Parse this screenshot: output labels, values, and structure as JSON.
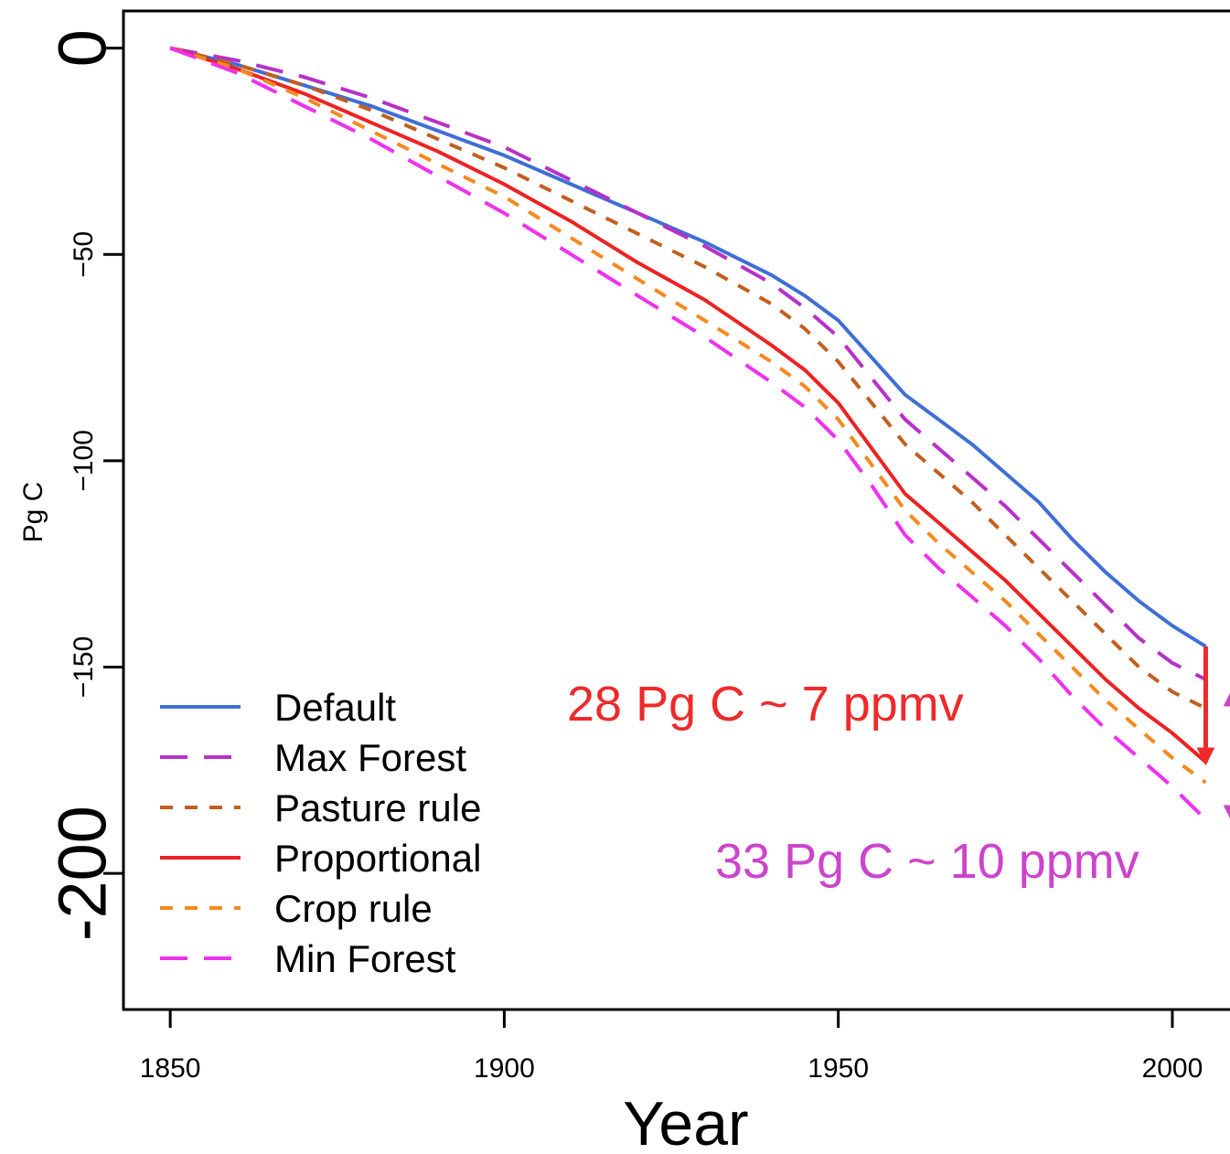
{
  "chart_data": {
    "type": "line",
    "xlabel": "Year",
    "ylabel": "Pg C",
    "xlim": [
      1843,
      2010
    ],
    "ylim": [
      -233,
      9
    ],
    "x_ticks": [
      {
        "value": 1850,
        "label": "1850"
      },
      {
        "value": 1900,
        "label": "1900"
      },
      {
        "value": 1950,
        "label": "1950"
      },
      {
        "value": 2000,
        "label": "2000"
      }
    ],
    "y_ticks": [
      {
        "value": 0,
        "label": "0",
        "size": "large"
      },
      {
        "value": -50,
        "label": "−50",
        "size": "small"
      },
      {
        "value": -100,
        "label": "−100",
        "size": "small"
      },
      {
        "value": -150,
        "label": "−150",
        "size": "small"
      },
      {
        "value": -200,
        "label": "-200",
        "size": "large"
      }
    ],
    "grid": false,
    "legend_position": "bottom-left",
    "x": [
      1850,
      1860,
      1870,
      1880,
      1890,
      1900,
      1910,
      1920,
      1930,
      1940,
      1945,
      1950,
      1955,
      1960,
      1965,
      1970,
      1975,
      1980,
      1985,
      1990,
      1995,
      2000,
      2005
    ],
    "series": [
      {
        "name": "Default",
        "color": "#3f6fd6",
        "dash": "solid",
        "values": [
          0,
          -4,
          -9,
          -14,
          -20,
          -26,
          -33,
          -40,
          -47,
          -55,
          -60,
          -66,
          -75,
          -84,
          -90,
          -96,
          -103,
          -110,
          -119,
          -127,
          -134,
          -140,
          -145
        ]
      },
      {
        "name": "Max Forest",
        "color": "#b830c9",
        "dash": "long",
        "values": [
          0,
          -3,
          -7,
          -12,
          -18,
          -24,
          -32,
          -40,
          -48,
          -57,
          -63,
          -70,
          -80,
          -90,
          -97,
          -104,
          -111,
          -119,
          -127,
          -135,
          -143,
          -149,
          -153
        ]
      },
      {
        "name": "Pasture rule",
        "color": "#c25f1f",
        "dash": "short",
        "values": [
          0,
          -4,
          -9,
          -15,
          -22,
          -29,
          -37,
          -45,
          -53,
          -62,
          -68,
          -76,
          -86,
          -96,
          -103,
          -110,
          -118,
          -126,
          -134,
          -142,
          -150,
          -156,
          -160
        ]
      },
      {
        "name": "Proportional",
        "color": "#ee2222",
        "dash": "solid",
        "values": [
          0,
          -5,
          -11,
          -18,
          -25,
          -33,
          -42,
          -52,
          -61,
          -72,
          -78,
          -86,
          -97,
          -108,
          -115,
          -122,
          -129,
          -137,
          -145,
          -153,
          -160,
          -166,
          -173
        ]
      },
      {
        "name": "Crop rule",
        "color": "#f58a1f",
        "dash": "short",
        "values": [
          0,
          -5,
          -12,
          -20,
          -28,
          -36,
          -46,
          -56,
          -66,
          -76,
          -82,
          -90,
          -101,
          -112,
          -120,
          -127,
          -134,
          -142,
          -150,
          -158,
          -165,
          -172,
          -178
        ]
      },
      {
        "name": "Min Forest",
        "color": "#f030f0",
        "dash": "long",
        "values": [
          0,
          -6,
          -14,
          -22,
          -31,
          -40,
          -50,
          -60,
          -70,
          -81,
          -87,
          -95,
          -106,
          -118,
          -126,
          -133,
          -140,
          -148,
          -157,
          -165,
          -172,
          -179,
          -187
        ]
      }
    ],
    "annotations": [
      {
        "text": "28 Pg C ~ 7 ppmv",
        "color": "#ee2a2a"
      },
      {
        "text": "33 Pg C ~ 10 ppmv",
        "color": "#cc44cc"
      }
    ],
    "arrows": [
      {
        "x": 2005,
        "from": -145,
        "to": -173,
        "color": "#ee2a2a",
        "heads": "end"
      },
      {
        "x": 2009,
        "from": -156,
        "to": -187,
        "color": "#cc44cc",
        "heads": "both"
      }
    ]
  }
}
